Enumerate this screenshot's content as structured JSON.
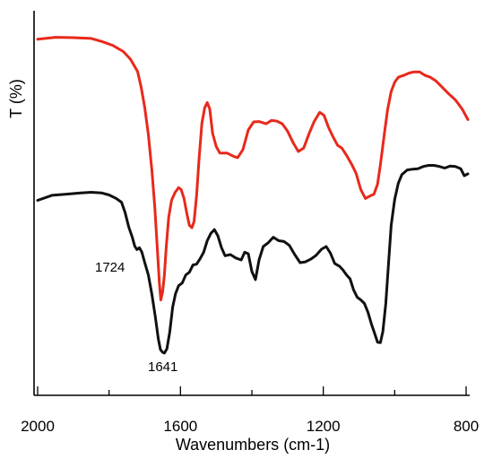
{
  "chart_data": {
    "type": "line",
    "title": "",
    "xlabel": "Wavenumbers (cm-1)",
    "ylabel": "T (%)",
    "xlim": [
      2000,
      790
    ],
    "x_reversed": true,
    "xticks": [
      2000,
      1600,
      1200,
      800
    ],
    "ylim": [
      0,
      100
    ],
    "grid": false,
    "series": [
      {
        "color": "#e8291c",
        "points": [
          [
            2000,
            92.6
          ],
          [
            1950,
            93.1
          ],
          [
            1900,
            93.0
          ],
          [
            1850,
            92.8
          ],
          [
            1820,
            92.0
          ],
          [
            1790,
            91.0
          ],
          [
            1760,
            89.4
          ],
          [
            1740,
            87.4
          ],
          [
            1720,
            84.2
          ],
          [
            1710,
            80.1
          ],
          [
            1700,
            74.8
          ],
          [
            1690,
            67.8
          ],
          [
            1680,
            58.4
          ],
          [
            1672,
            48.9
          ],
          [
            1665,
            38.6
          ],
          [
            1659,
            29.2
          ],
          [
            1655,
            24.8
          ],
          [
            1650,
            26.9
          ],
          [
            1645,
            31.3
          ],
          [
            1640,
            38.4
          ],
          [
            1633,
            46.3
          ],
          [
            1625,
            50.7
          ],
          [
            1615,
            52.8
          ],
          [
            1605,
            54.0
          ],
          [
            1598,
            53.5
          ],
          [
            1590,
            51.2
          ],
          [
            1582,
            47.2
          ],
          [
            1575,
            44.2
          ],
          [
            1568,
            43.6
          ],
          [
            1562,
            45.2
          ],
          [
            1555,
            51.9
          ],
          [
            1548,
            61.2
          ],
          [
            1540,
            70.7
          ],
          [
            1532,
            74.8
          ],
          [
            1525,
            76.1
          ],
          [
            1518,
            74.5
          ],
          [
            1510,
            68.1
          ],
          [
            1500,
            64.7
          ],
          [
            1490,
            63.0
          ],
          [
            1470,
            63.0
          ],
          [
            1450,
            62.1
          ],
          [
            1440,
            61.8
          ],
          [
            1425,
            63.9
          ],
          [
            1410,
            69.0
          ],
          [
            1395,
            71.1
          ],
          [
            1380,
            71.2
          ],
          [
            1360,
            70.6
          ],
          [
            1345,
            71.5
          ],
          [
            1330,
            71.3
          ],
          [
            1315,
            70.6
          ],
          [
            1300,
            68.7
          ],
          [
            1285,
            65.8
          ],
          [
            1270,
            63.4
          ],
          [
            1255,
            64.3
          ],
          [
            1240,
            68.0
          ],
          [
            1225,
            71.3
          ],
          [
            1210,
            73.6
          ],
          [
            1198,
            72.8
          ],
          [
            1185,
            69.6
          ],
          [
            1172,
            67.1
          ],
          [
            1160,
            65.0
          ],
          [
            1148,
            64.3
          ],
          [
            1135,
            62.4
          ],
          [
            1120,
            60.0
          ],
          [
            1108,
            57.7
          ],
          [
            1095,
            53.5
          ],
          [
            1082,
            51.2
          ],
          [
            1070,
            51.8
          ],
          [
            1058,
            52.3
          ],
          [
            1048,
            54.9
          ],
          [
            1040,
            60.0
          ],
          [
            1030,
            67.3
          ],
          [
            1020,
            74.3
          ],
          [
            1010,
            79.0
          ],
          [
            1000,
            81.4
          ],
          [
            990,
            82.7
          ],
          [
            975,
            83.2
          ],
          [
            960,
            83.8
          ],
          [
            945,
            84.1
          ],
          [
            930,
            84.1
          ],
          [
            915,
            83.2
          ],
          [
            900,
            82.7
          ],
          [
            885,
            81.8
          ],
          [
            870,
            80.4
          ],
          [
            850,
            78.5
          ],
          [
            830,
            76.8
          ],
          [
            810,
            74.3
          ],
          [
            795,
            71.7
          ]
        ]
      },
      {
        "color": "#111111",
        "points": [
          [
            2000,
            50.7
          ],
          [
            1960,
            52.0
          ],
          [
            1920,
            52.3
          ],
          [
            1880,
            52.6
          ],
          [
            1850,
            52.8
          ],
          [
            1820,
            52.6
          ],
          [
            1800,
            52.1
          ],
          [
            1780,
            51.2
          ],
          [
            1765,
            50.2
          ],
          [
            1755,
            47.5
          ],
          [
            1745,
            43.8
          ],
          [
            1735,
            41.1
          ],
          [
            1728,
            38.8
          ],
          [
            1722,
            37.9
          ],
          [
            1715,
            38.4
          ],
          [
            1708,
            37.2
          ],
          [
            1700,
            34.5
          ],
          [
            1690,
            31.3
          ],
          [
            1680,
            26.2
          ],
          [
            1670,
            20.2
          ],
          [
            1662,
            14.7
          ],
          [
            1656,
            11.9
          ],
          [
            1650,
            11.2
          ],
          [
            1645,
            11.0
          ],
          [
            1638,
            12.1
          ],
          [
            1630,
            16.5
          ],
          [
            1622,
            22.9
          ],
          [
            1614,
            26.4
          ],
          [
            1605,
            28.5
          ],
          [
            1595,
            29.2
          ],
          [
            1585,
            31.3
          ],
          [
            1575,
            32.0
          ],
          [
            1565,
            33.9
          ],
          [
            1555,
            34.1
          ],
          [
            1545,
            35.5
          ],
          [
            1535,
            37.2
          ],
          [
            1525,
            40.2
          ],
          [
            1515,
            42.1
          ],
          [
            1505,
            43.1
          ],
          [
            1495,
            41.4
          ],
          [
            1485,
            38.4
          ],
          [
            1475,
            36.3
          ],
          [
            1460,
            36.6
          ],
          [
            1445,
            35.7
          ],
          [
            1430,
            35.2
          ],
          [
            1420,
            37.2
          ],
          [
            1410,
            36.8
          ],
          [
            1400,
            32.2
          ],
          [
            1390,
            30.1
          ],
          [
            1380,
            35.2
          ],
          [
            1368,
            38.7
          ],
          [
            1355,
            39.6
          ],
          [
            1340,
            41.1
          ],
          [
            1325,
            40.2
          ],
          [
            1310,
            40.0
          ],
          [
            1295,
            39.0
          ],
          [
            1280,
            36.6
          ],
          [
            1265,
            34.5
          ],
          [
            1250,
            34.7
          ],
          [
            1235,
            35.4
          ],
          [
            1220,
            36.4
          ],
          [
            1205,
            38.0
          ],
          [
            1192,
            38.7
          ],
          [
            1180,
            37.0
          ],
          [
            1168,
            34.3
          ],
          [
            1155,
            33.6
          ],
          [
            1145,
            32.6
          ],
          [
            1135,
            31.3
          ],
          [
            1125,
            30.3
          ],
          [
            1115,
            27.4
          ],
          [
            1105,
            25.5
          ],
          [
            1095,
            24.8
          ],
          [
            1085,
            23.9
          ],
          [
            1075,
            21.6
          ],
          [
            1065,
            18.5
          ],
          [
            1055,
            15.8
          ],
          [
            1048,
            13.8
          ],
          [
            1040,
            13.7
          ],
          [
            1033,
            16.7
          ],
          [
            1025,
            23.9
          ],
          [
            1018,
            33.4
          ],
          [
            1010,
            44.2
          ],
          [
            1000,
            50.9
          ],
          [
            990,
            55.1
          ],
          [
            980,
            57.4
          ],
          [
            965,
            58.6
          ],
          [
            950,
            58.8
          ],
          [
            935,
            58.9
          ],
          [
            920,
            59.5
          ],
          [
            905,
            59.8
          ],
          [
            890,
            59.8
          ],
          [
            875,
            59.5
          ],
          [
            860,
            59.1
          ],
          [
            845,
            59.6
          ],
          [
            830,
            59.5
          ],
          [
            815,
            58.9
          ],
          [
            805,
            57.1
          ],
          [
            795,
            57.6
          ]
        ]
      }
    ],
    "annotations": [
      {
        "text": "1724",
        "x": 1724,
        "y": 37.9,
        "anchor": "left"
      },
      {
        "text": "1641",
        "x": 1641,
        "y": 11.0,
        "anchor": "below"
      }
    ]
  }
}
